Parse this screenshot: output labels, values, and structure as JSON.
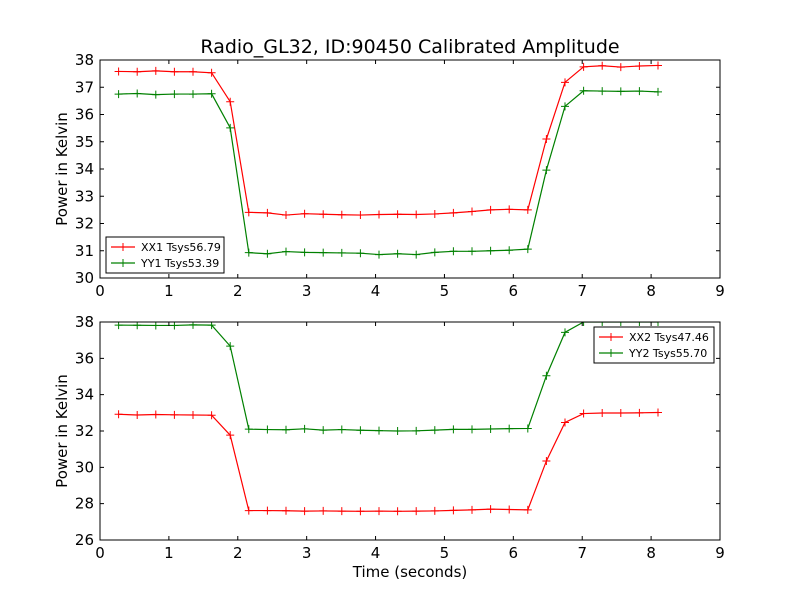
{
  "figure": {
    "title": "Radio_GL32, ID:90450 Calibrated Amplitude"
  },
  "chart_data": [
    {
      "type": "line",
      "xlabel": "",
      "ylabel": "Power in Kelvin",
      "xlim": [
        0,
        9
      ],
      "ylim": [
        30,
        38
      ],
      "xticks": [
        0,
        1,
        2,
        3,
        4,
        5,
        6,
        7,
        8,
        9
      ],
      "yticks": [
        30,
        31,
        32,
        33,
        34,
        35,
        36,
        37,
        38
      ],
      "grid": false,
      "legend_position": "lower-left",
      "x": [
        0.27,
        0.54,
        0.81,
        1.08,
        1.35,
        1.62,
        1.89,
        2.16,
        2.43,
        2.7,
        2.97,
        3.24,
        3.51,
        3.78,
        4.05,
        4.32,
        4.59,
        4.86,
        5.13,
        5.4,
        5.67,
        5.94,
        6.21,
        6.48,
        6.75,
        7.02,
        7.29,
        7.56,
        7.83,
        8.1
      ],
      "series": [
        {
          "name": "XX1 Tsys56.79",
          "color": "#ff0000",
          "values": [
            37.58,
            37.57,
            37.6,
            37.57,
            37.57,
            37.53,
            36.47,
            32.41,
            32.39,
            32.31,
            32.36,
            32.34,
            32.32,
            32.31,
            32.33,
            32.34,
            32.33,
            32.35,
            32.39,
            32.44,
            32.5,
            32.52,
            32.5,
            35.1,
            37.18,
            37.75,
            37.79,
            37.74,
            37.78,
            37.8
          ]
        },
        {
          "name": "YY1 Tsys53.39",
          "color": "#008000",
          "values": [
            36.75,
            36.77,
            36.73,
            36.75,
            36.75,
            36.76,
            35.51,
            30.93,
            30.89,
            30.97,
            30.94,
            30.93,
            30.92,
            30.91,
            30.86,
            30.89,
            30.86,
            30.94,
            30.98,
            30.98,
            31.0,
            31.02,
            31.06,
            33.96,
            36.3,
            36.87,
            36.86,
            36.85,
            36.86,
            36.83
          ]
        }
      ]
    },
    {
      "type": "line",
      "xlabel": "Time (seconds)",
      "ylabel": "Power in Kelvin",
      "xlim": [
        0,
        9
      ],
      "ylim": [
        26,
        38
      ],
      "xticks": [
        0,
        1,
        2,
        3,
        4,
        5,
        6,
        7,
        8,
        9
      ],
      "yticks": [
        26,
        28,
        30,
        32,
        34,
        36,
        38
      ],
      "grid": false,
      "legend_position": "upper-right",
      "x": [
        0.27,
        0.54,
        0.81,
        1.08,
        1.35,
        1.62,
        1.89,
        2.16,
        2.43,
        2.7,
        2.97,
        3.24,
        3.51,
        3.78,
        4.05,
        4.32,
        4.59,
        4.86,
        5.13,
        5.4,
        5.67,
        5.94,
        6.21,
        6.48,
        6.75,
        7.02,
        7.29,
        7.56,
        7.83,
        8.1
      ],
      "series": [
        {
          "name": "XX2 Tsys47.46",
          "color": "#ff0000",
          "values": [
            32.92,
            32.88,
            32.91,
            32.89,
            32.88,
            32.87,
            31.77,
            27.62,
            27.62,
            27.61,
            27.59,
            27.6,
            27.59,
            27.58,
            27.59,
            27.58,
            27.59,
            27.6,
            27.63,
            27.66,
            27.7,
            27.68,
            27.66,
            30.35,
            32.47,
            32.96,
            32.99,
            32.99,
            33.0,
            33.02
          ]
        },
        {
          "name": "YY2 Tsys55.70",
          "color": "#008000",
          "values": [
            37.83,
            37.82,
            37.81,
            37.81,
            37.84,
            37.83,
            36.67,
            32.1,
            32.08,
            32.07,
            32.12,
            32.05,
            32.08,
            32.04,
            32.02,
            32.0,
            32.01,
            32.05,
            32.09,
            32.09,
            32.11,
            32.13,
            32.14,
            35.04,
            37.43,
            38.0,
            38.0,
            38.0,
            38.0,
            38.0
          ]
        }
      ]
    }
  ]
}
